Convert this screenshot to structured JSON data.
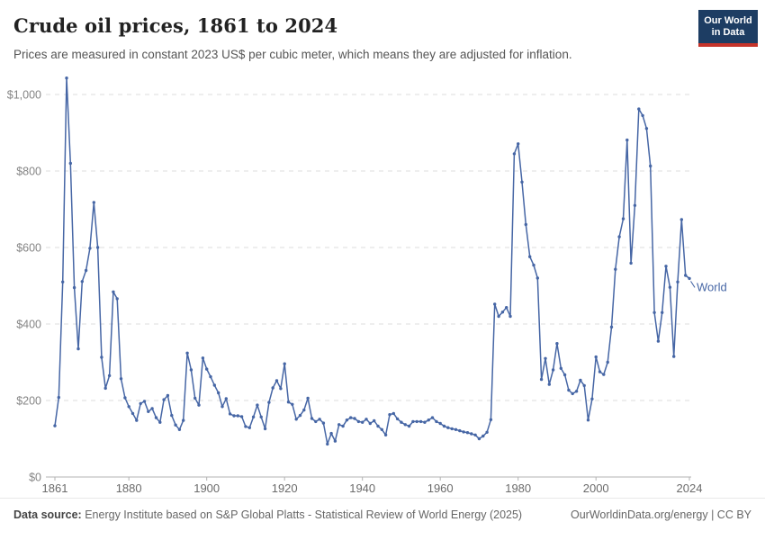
{
  "header": {
    "title": "Crude oil prices, 1861 to 2024",
    "subtitle": "Prices are measured in constant 2023 US$ per cubic meter, which means they are adjusted for inflation.",
    "logo": {
      "line1": "Our World",
      "line2": "in Data"
    }
  },
  "chart_data": {
    "type": "line",
    "title": "Crude oil prices, 1861 to 2024",
    "xlabel": "",
    "ylabel": "constant 2023 US$ per cubic meter",
    "xlim": [
      1861,
      2024
    ],
    "ylim": [
      0,
      1050
    ],
    "grid": "horizontal dashed",
    "legend_position": "end-of-line label",
    "x_ticks": [
      1861,
      1880,
      1900,
      1920,
      1940,
      1960,
      1980,
      2000,
      2024
    ],
    "y_ticks": [
      0,
      200,
      400,
      600,
      800,
      1000
    ],
    "y_tick_labels": [
      "$0",
      "$200",
      "$400",
      "$600",
      "$800",
      "$1,000"
    ],
    "line_color": "#4666a5",
    "series": [
      {
        "name": "World",
        "color": "#4666a5",
        "years": [
          1861,
          1862,
          1863,
          1864,
          1865,
          1866,
          1867,
          1868,
          1869,
          1870,
          1871,
          1872,
          1873,
          1874,
          1875,
          1876,
          1877,
          1878,
          1879,
          1880,
          1881,
          1882,
          1883,
          1884,
          1885,
          1886,
          1887,
          1888,
          1889,
          1890,
          1891,
          1892,
          1893,
          1894,
          1895,
          1896,
          1897,
          1898,
          1899,
          1900,
          1901,
          1902,
          1903,
          1904,
          1905,
          1906,
          1907,
          1908,
          1909,
          1910,
          1911,
          1912,
          1913,
          1914,
          1915,
          1916,
          1917,
          1918,
          1919,
          1920,
          1921,
          1922,
          1923,
          1924,
          1925,
          1926,
          1927,
          1928,
          1929,
          1930,
          1931,
          1932,
          1933,
          1934,
          1935,
          1936,
          1937,
          1938,
          1939,
          1940,
          1941,
          1942,
          1943,
          1944,
          1945,
          1946,
          1947,
          1948,
          1949,
          1950,
          1951,
          1952,
          1953,
          1954,
          1955,
          1956,
          1957,
          1958,
          1959,
          1960,
          1961,
          1962,
          1963,
          1964,
          1965,
          1966,
          1967,
          1968,
          1969,
          1970,
          1971,
          1972,
          1973,
          1974,
          1975,
          1976,
          1977,
          1978,
          1979,
          1980,
          1981,
          1982,
          1983,
          1984,
          1985,
          1986,
          1987,
          1988,
          1989,
          1990,
          1991,
          1992,
          1993,
          1994,
          1995,
          1996,
          1997,
          1998,
          1999,
          2000,
          2001,
          2002,
          2003,
          2004,
          2005,
          2006,
          2007,
          2008,
          2009,
          2010,
          2011,
          2012,
          2013,
          2014,
          2015,
          2016,
          2017,
          2018,
          2019,
          2020,
          2021,
          2022,
          2023,
          2024
        ],
        "values": [
          134,
          208,
          510,
          1043,
          820,
          495,
          335,
          511,
          540,
          598,
          718,
          600,
          313,
          232,
          265,
          484,
          466,
          257,
          207,
          184,
          166,
          148,
          192,
          198,
          171,
          179,
          155,
          143,
          202,
          213,
          161,
          136,
          124,
          148,
          324,
          280,
          206,
          188,
          311,
          282,
          262,
          240,
          220,
          184,
          205,
          165,
          160,
          160,
          158,
          132,
          129,
          157,
          188,
          157,
          126,
          195,
          233,
          252,
          231,
          296,
          196,
          190,
          151,
          161,
          175,
          206,
          153,
          145,
          151,
          141,
          86,
          114,
          94,
          137,
          133,
          149,
          155,
          153,
          145,
          143,
          151,
          140,
          147,
          133,
          124,
          110,
          163,
          166,
          152,
          143,
          137,
          133,
          145,
          145,
          145,
          143,
          149,
          155,
          145,
          140,
          133,
          129,
          126,
          124,
          121,
          118,
          116,
          113,
          110,
          100,
          107,
          117,
          150,
          452,
          420,
          431,
          443,
          420,
          845,
          871,
          771,
          660,
          576,
          554,
          520,
          255,
          310,
          242,
          280,
          349,
          284,
          267,
          227,
          218,
          224,
          253,
          239,
          149,
          204,
          314,
          275,
          268,
          300,
          392,
          543,
          628,
          675,
          881,
          559,
          710,
          962,
          945,
          911,
          813,
          430,
          355,
          430,
          551,
          496,
          315,
          510,
          673,
          527,
          519
        ]
      }
    ]
  },
  "footer": {
    "source_label": "Data source:",
    "source_text": " Energy Institute based on S&P Global Platts - Statistical Review of World Energy (2025)",
    "credit": "OurWorldinData.org/energy | CC BY"
  }
}
